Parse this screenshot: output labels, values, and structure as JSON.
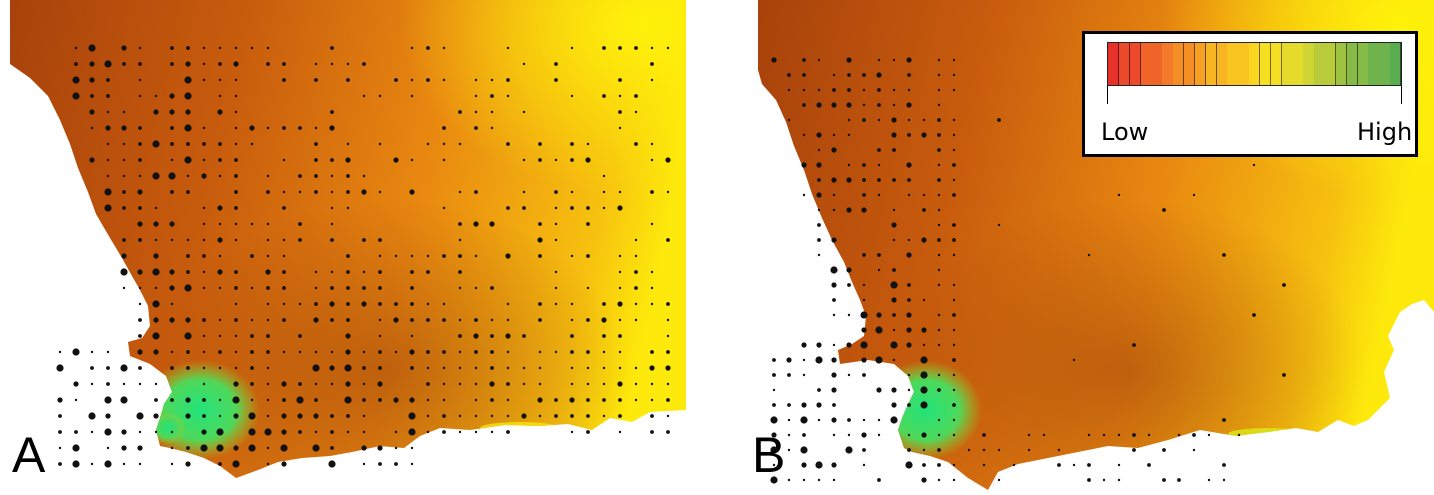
{
  "panels": [
    {
      "id": "A",
      "label": "A"
    },
    {
      "id": "B",
      "label": "B"
    }
  ],
  "legend": {
    "low_label": "Low",
    "high_label": "High",
    "colors": [
      "#e8302a",
      "#ec4a2a",
      "#f0642a",
      "#f27a28",
      "#f48e26",
      "#f6a024",
      "#f8b422",
      "#f9c521",
      "#fad621",
      "#f4df22",
      "#e4db2a",
      "#cfd333",
      "#b7cb3b",
      "#9ec343",
      "#86bb49",
      "#6fb34d",
      "#5aac50"
    ],
    "segments": 27
  },
  "colors": {
    "ocean": "#ffffff",
    "land_dark": "#b94f0c",
    "land_mid": "#e0770f",
    "land_light": "#f3a216",
    "land_yellow": "#fbe80c",
    "wet_green": "#22e37a",
    "dot": "#111111"
  }
}
